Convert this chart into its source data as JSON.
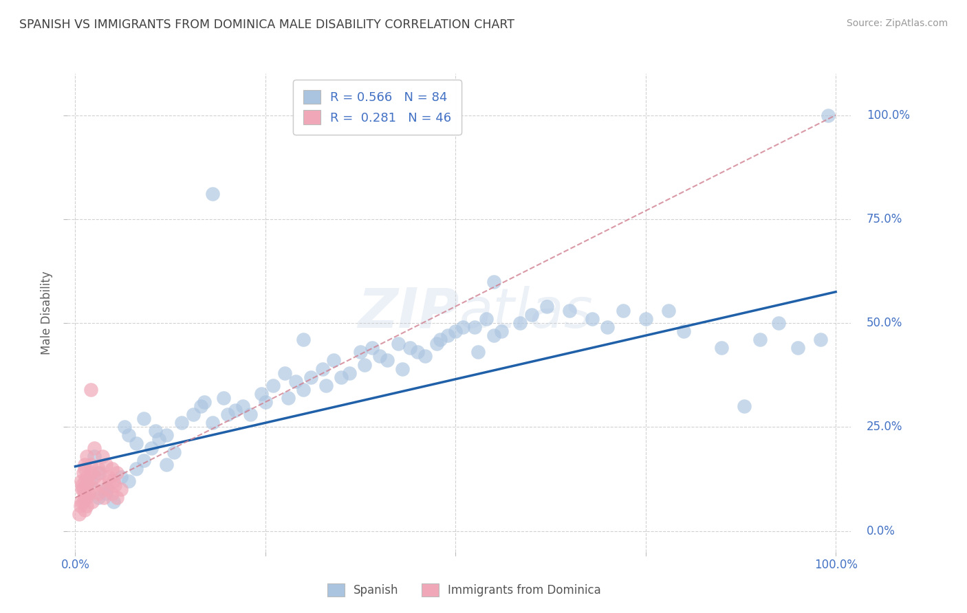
{
  "title": "SPANISH VS IMMIGRANTS FROM DOMINICA MALE DISABILITY CORRELATION CHART",
  "source": "Source: ZipAtlas.com",
  "ylabel": "Male Disability",
  "x_ticks": [
    0.0,
    0.25,
    0.5,
    0.75,
    1.0
  ],
  "x_tick_labels": [
    "0.0%",
    "",
    "",
    "",
    "100.0%"
  ],
  "y_ticks": [
    0.0,
    0.25,
    0.5,
    0.75,
    1.0
  ],
  "y_tick_labels_right": [
    "0.0%",
    "25.0%",
    "50.0%",
    "75.0%",
    "100.0%"
  ],
  "blue_R": 0.566,
  "blue_N": 84,
  "pink_R": 0.281,
  "pink_N": 46,
  "blue_color": "#aac4e0",
  "pink_color": "#f0a8b8",
  "blue_line_color": "#2060a8",
  "pink_line_color": "#d08090",
  "grid_color": "#cccccc",
  "title_color": "#404040",
  "axis_label_color": "#4472c4",
  "blue_line_x0": 0.0,
  "blue_line_y0": 0.155,
  "blue_line_x1": 1.0,
  "blue_line_y1": 0.575,
  "pink_line_x0": 0.0,
  "pink_line_y0": 0.08,
  "pink_line_x1": 1.0,
  "pink_line_y1": 1.0,
  "blue_scatter_x": [
    0.02,
    0.03,
    0.04,
    0.05,
    0.03,
    0.025,
    0.04,
    0.06,
    0.08,
    0.07,
    0.09,
    0.1,
    0.11,
    0.12,
    0.13,
    0.105,
    0.08,
    0.07,
    0.065,
    0.09,
    0.12,
    0.14,
    0.155,
    0.165,
    0.18,
    0.2,
    0.22,
    0.195,
    0.17,
    0.21,
    0.23,
    0.25,
    0.245,
    0.26,
    0.28,
    0.3,
    0.29,
    0.275,
    0.31,
    0.33,
    0.35,
    0.325,
    0.34,
    0.36,
    0.38,
    0.4,
    0.39,
    0.375,
    0.41,
    0.43,
    0.45,
    0.425,
    0.44,
    0.46,
    0.48,
    0.5,
    0.49,
    0.475,
    0.51,
    0.53,
    0.55,
    0.525,
    0.54,
    0.56,
    0.585,
    0.6,
    0.62,
    0.65,
    0.68,
    0.7,
    0.72,
    0.75,
    0.78,
    0.8,
    0.85,
    0.88,
    0.9,
    0.925,
    0.95,
    0.98,
    0.99,
    0.18,
    0.3,
    0.55
  ],
  "blue_scatter_y": [
    0.12,
    0.08,
    0.1,
    0.07,
    0.14,
    0.18,
    0.09,
    0.13,
    0.15,
    0.12,
    0.17,
    0.2,
    0.22,
    0.16,
    0.19,
    0.24,
    0.21,
    0.23,
    0.25,
    0.27,
    0.23,
    0.26,
    0.28,
    0.3,
    0.26,
    0.28,
    0.3,
    0.32,
    0.31,
    0.29,
    0.28,
    0.31,
    0.33,
    0.35,
    0.32,
    0.34,
    0.36,
    0.38,
    0.37,
    0.35,
    0.37,
    0.39,
    0.41,
    0.38,
    0.4,
    0.42,
    0.44,
    0.43,
    0.41,
    0.39,
    0.43,
    0.45,
    0.44,
    0.42,
    0.46,
    0.48,
    0.47,
    0.45,
    0.49,
    0.43,
    0.47,
    0.49,
    0.51,
    0.48,
    0.5,
    0.52,
    0.54,
    0.53,
    0.51,
    0.49,
    0.53,
    0.51,
    0.53,
    0.48,
    0.44,
    0.3,
    0.46,
    0.5,
    0.44,
    0.46,
    1.0,
    0.81,
    0.46,
    0.6
  ],
  "pink_scatter_x": [
    0.005,
    0.008,
    0.01,
    0.012,
    0.015,
    0.008,
    0.01,
    0.012,
    0.007,
    0.009,
    0.012,
    0.01,
    0.015,
    0.012,
    0.009,
    0.015,
    0.012,
    0.018,
    0.015,
    0.012,
    0.02,
    0.015,
    0.022,
    0.018,
    0.025,
    0.02,
    0.03,
    0.025,
    0.035,
    0.03,
    0.038,
    0.032,
    0.042,
    0.036,
    0.045,
    0.04,
    0.048,
    0.044,
    0.052,
    0.048,
    0.055,
    0.05,
    0.06,
    0.055,
    0.02,
    0.025
  ],
  "pink_scatter_y": [
    0.04,
    0.07,
    0.1,
    0.05,
    0.08,
    0.12,
    0.07,
    0.09,
    0.06,
    0.11,
    0.12,
    0.14,
    0.06,
    0.08,
    0.1,
    0.13,
    0.16,
    0.09,
    0.11,
    0.15,
    0.14,
    0.18,
    0.07,
    0.12,
    0.1,
    0.16,
    0.09,
    0.13,
    0.11,
    0.15,
    0.08,
    0.14,
    0.1,
    0.18,
    0.12,
    0.16,
    0.09,
    0.13,
    0.11,
    0.15,
    0.08,
    0.12,
    0.1,
    0.14,
    0.34,
    0.2
  ]
}
